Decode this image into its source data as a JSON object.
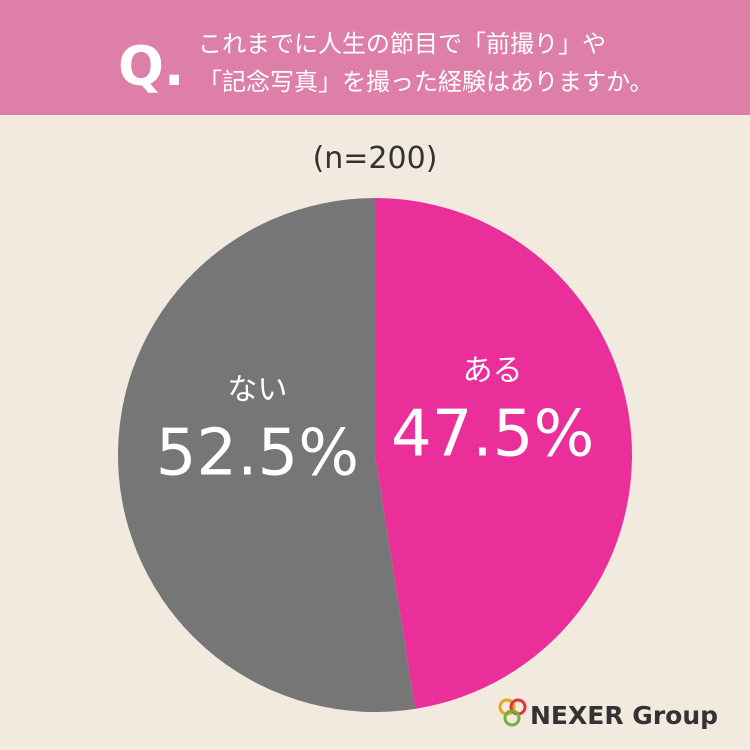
{
  "chart_data": {
    "type": "pie",
    "question_label": "Q.",
    "title": [
      "これまでに人生の節目で「前撮り」や",
      "「記念写真」を撮った経験はありますか。"
    ],
    "subtitle": "(n=200)",
    "categories": [
      "ある",
      "ない"
    ],
    "values": [
      47.5,
      52.5
    ],
    "value_labels": [
      "47.5%",
      "52.5%"
    ],
    "colors": [
      "#ea2f9a",
      "#767676"
    ]
  },
  "logo": "NEXER Group"
}
